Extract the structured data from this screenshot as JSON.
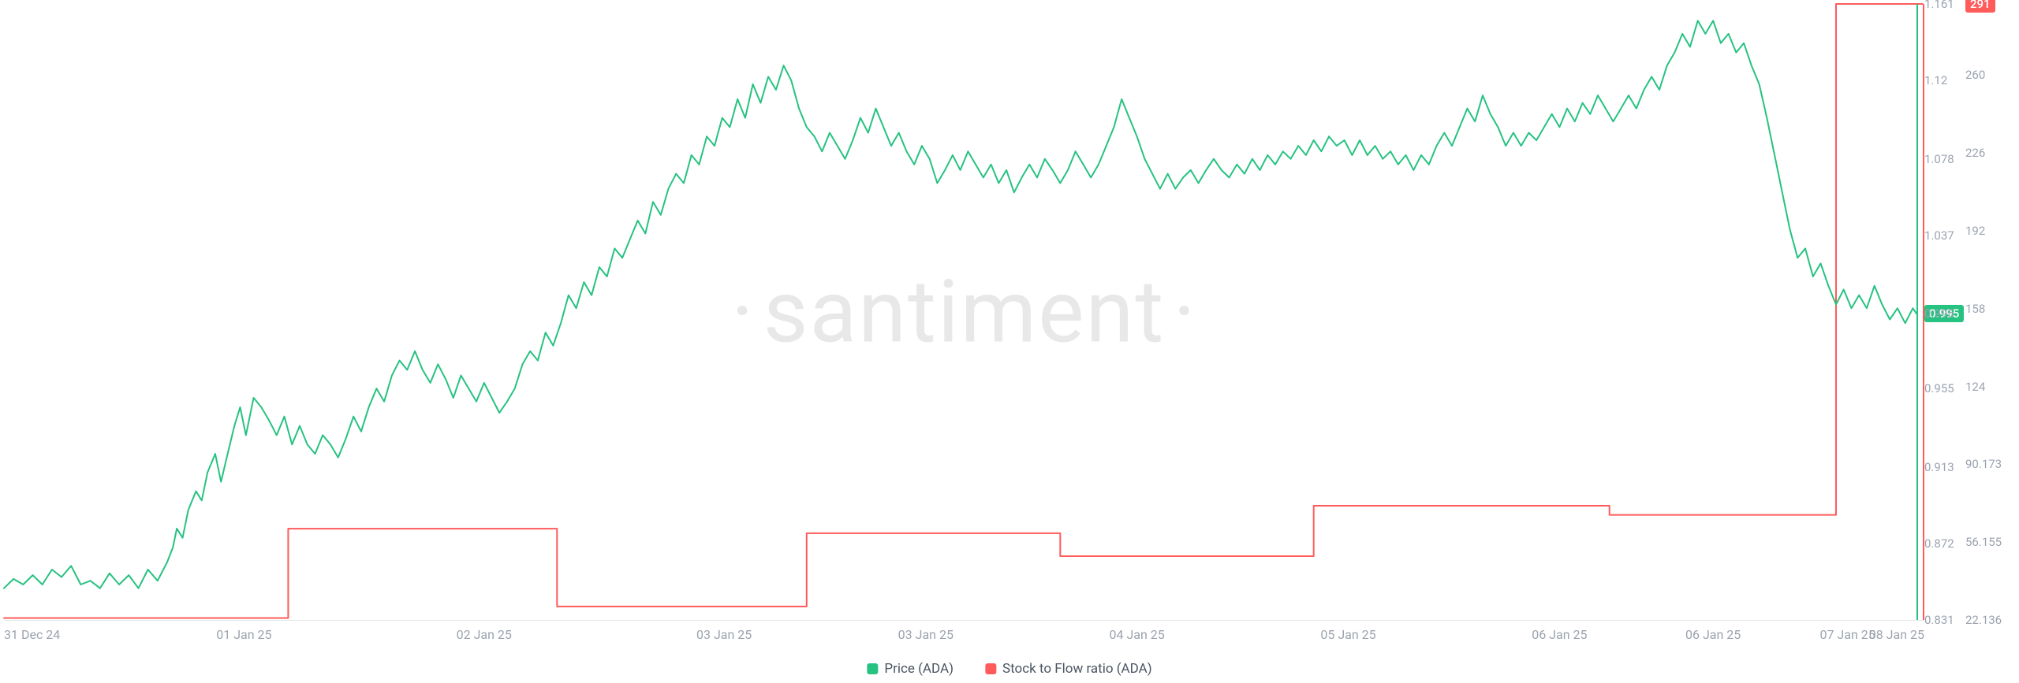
{
  "watermark": "santiment",
  "chart": {
    "type": "line",
    "background_color": "#ffffff",
    "grid_color": "#e8e8e8",
    "tick_color": "#9ca3af",
    "tick_fontsize": 16,
    "x": {
      "ticks": [
        {
          "pos": 0.0,
          "label": "31 Dec 24"
        },
        {
          "pos": 0.125,
          "label": "01 Jan 25"
        },
        {
          "pos": 0.25,
          "label": "02 Jan 25"
        },
        {
          "pos": 0.375,
          "label": "03 Jan 25"
        },
        {
          "pos": 0.48,
          "label": "03 Jan 25"
        },
        {
          "pos": 0.59,
          "label": "04 Jan 25"
        },
        {
          "pos": 0.7,
          "label": "05 Jan 25"
        },
        {
          "pos": 0.81,
          "label": "06 Jan 25"
        },
        {
          "pos": 0.89,
          "label": "06 Jan 25"
        },
        {
          "pos": 0.96,
          "label": "07 Jan 25"
        },
        {
          "pos": 1.0,
          "label": "08 Jan 25"
        }
      ]
    },
    "y_left": {
      "min": 0.831,
      "max": 1.161,
      "ticks": [
        {
          "v": 1.161,
          "label": "1.161"
        },
        {
          "v": 1.12,
          "label": "1.12"
        },
        {
          "v": 1.078,
          "label": "1.078"
        },
        {
          "v": 1.037,
          "label": "1.037"
        },
        {
          "v": 0.995,
          "label": "0.995"
        },
        {
          "v": 0.955,
          "label": "0.955"
        },
        {
          "v": 0.913,
          "label": "0.913"
        },
        {
          "v": 0.872,
          "label": "0.872"
        },
        {
          "v": 0.831,
          "label": "0.831"
        }
      ]
    },
    "y_right": {
      "min": 22.136,
      "max": 291,
      "ticks": [
        {
          "v": 260,
          "label": "260"
        },
        {
          "v": 226,
          "label": "226"
        },
        {
          "v": 192,
          "label": "192"
        },
        {
          "v": 158,
          "label": "158"
        },
        {
          "v": 124,
          "label": "124"
        },
        {
          "v": 90.173,
          "label": "90.173"
        },
        {
          "v": 56.155,
          "label": "56.155"
        },
        {
          "v": 22.136,
          "label": "22.136"
        }
      ]
    },
    "badges": {
      "left": {
        "value": "0.995",
        "y": 0.995,
        "bg": "#26c281"
      },
      "right": {
        "value": "291",
        "y": 291,
        "bg": "#ff5b5b"
      }
    },
    "end_vline_left": {
      "x": 0.996,
      "color": "#26c281"
    },
    "end_vline_right": {
      "x": 0.999,
      "color": "#ff5b5b"
    },
    "series": {
      "price": {
        "label": "Price (ADA)",
        "color": "#26c281",
        "width": 2,
        "axis": "left",
        "points": [
          [
            0.0,
            0.848
          ],
          [
            0.005,
            0.853
          ],
          [
            0.01,
            0.85
          ],
          [
            0.015,
            0.855
          ],
          [
            0.02,
            0.85
          ],
          [
            0.025,
            0.858
          ],
          [
            0.03,
            0.854
          ],
          [
            0.035,
            0.86
          ],
          [
            0.04,
            0.85
          ],
          [
            0.045,
            0.852
          ],
          [
            0.05,
            0.848
          ],
          [
            0.055,
            0.856
          ],
          [
            0.06,
            0.85
          ],
          [
            0.065,
            0.855
          ],
          [
            0.07,
            0.848
          ],
          [
            0.075,
            0.858
          ],
          [
            0.08,
            0.852
          ],
          [
            0.085,
            0.862
          ],
          [
            0.088,
            0.87
          ],
          [
            0.09,
            0.88
          ],
          [
            0.093,
            0.875
          ],
          [
            0.096,
            0.89
          ],
          [
            0.1,
            0.9
          ],
          [
            0.103,
            0.895
          ],
          [
            0.106,
            0.91
          ],
          [
            0.11,
            0.92
          ],
          [
            0.113,
            0.905
          ],
          [
            0.116,
            0.918
          ],
          [
            0.12,
            0.935
          ],
          [
            0.123,
            0.945
          ],
          [
            0.126,
            0.93
          ],
          [
            0.13,
            0.95
          ],
          [
            0.134,
            0.945
          ],
          [
            0.138,
            0.938
          ],
          [
            0.142,
            0.93
          ],
          [
            0.146,
            0.94
          ],
          [
            0.15,
            0.925
          ],
          [
            0.154,
            0.935
          ],
          [
            0.158,
            0.925
          ],
          [
            0.162,
            0.92
          ],
          [
            0.166,
            0.93
          ],
          [
            0.17,
            0.925
          ],
          [
            0.174,
            0.918
          ],
          [
            0.178,
            0.928
          ],
          [
            0.182,
            0.94
          ],
          [
            0.186,
            0.932
          ],
          [
            0.19,
            0.945
          ],
          [
            0.194,
            0.955
          ],
          [
            0.198,
            0.948
          ],
          [
            0.202,
            0.962
          ],
          [
            0.206,
            0.97
          ],
          [
            0.21,
            0.965
          ],
          [
            0.214,
            0.975
          ],
          [
            0.218,
            0.965
          ],
          [
            0.222,
            0.958
          ],
          [
            0.226,
            0.968
          ],
          [
            0.23,
            0.96
          ],
          [
            0.234,
            0.95
          ],
          [
            0.238,
            0.962
          ],
          [
            0.242,
            0.955
          ],
          [
            0.246,
            0.948
          ],
          [
            0.25,
            0.958
          ],
          [
            0.254,
            0.95
          ],
          [
            0.258,
            0.942
          ],
          [
            0.262,
            0.948
          ],
          [
            0.266,
            0.955
          ],
          [
            0.27,
            0.968
          ],
          [
            0.274,
            0.975
          ],
          [
            0.278,
            0.97
          ],
          [
            0.282,
            0.985
          ],
          [
            0.286,
            0.978
          ],
          [
            0.29,
            0.99
          ],
          [
            0.294,
            1.005
          ],
          [
            0.298,
            0.998
          ],
          [
            0.302,
            1.012
          ],
          [
            0.306,
            1.005
          ],
          [
            0.31,
            1.02
          ],
          [
            0.314,
            1.015
          ],
          [
            0.318,
            1.03
          ],
          [
            0.322,
            1.025
          ],
          [
            0.326,
            1.035
          ],
          [
            0.33,
            1.045
          ],
          [
            0.334,
            1.038
          ],
          [
            0.338,
            1.055
          ],
          [
            0.342,
            1.048
          ],
          [
            0.346,
            1.062
          ],
          [
            0.35,
            1.07
          ],
          [
            0.354,
            1.065
          ],
          [
            0.358,
            1.08
          ],
          [
            0.362,
            1.075
          ],
          [
            0.366,
            1.09
          ],
          [
            0.37,
            1.085
          ],
          [
            0.374,
            1.1
          ],
          [
            0.378,
            1.095
          ],
          [
            0.382,
            1.11
          ],
          [
            0.386,
            1.1
          ],
          [
            0.39,
            1.118
          ],
          [
            0.394,
            1.108
          ],
          [
            0.398,
            1.122
          ],
          [
            0.402,
            1.115
          ],
          [
            0.406,
            1.128
          ],
          [
            0.41,
            1.12
          ],
          [
            0.414,
            1.105
          ],
          [
            0.418,
            1.095
          ],
          [
            0.422,
            1.09
          ],
          [
            0.426,
            1.082
          ],
          [
            0.43,
            1.092
          ],
          [
            0.434,
            1.085
          ],
          [
            0.438,
            1.078
          ],
          [
            0.442,
            1.088
          ],
          [
            0.446,
            1.1
          ],
          [
            0.45,
            1.092
          ],
          [
            0.454,
            1.105
          ],
          [
            0.458,
            1.095
          ],
          [
            0.462,
            1.085
          ],
          [
            0.466,
            1.092
          ],
          [
            0.47,
            1.082
          ],
          [
            0.474,
            1.075
          ],
          [
            0.478,
            1.085
          ],
          [
            0.482,
            1.078
          ],
          [
            0.486,
            1.065
          ],
          [
            0.49,
            1.072
          ],
          [
            0.494,
            1.08
          ],
          [
            0.498,
            1.072
          ],
          [
            0.502,
            1.082
          ],
          [
            0.506,
            1.075
          ],
          [
            0.51,
            1.068
          ],
          [
            0.514,
            1.075
          ],
          [
            0.518,
            1.065
          ],
          [
            0.522,
            1.072
          ],
          [
            0.526,
            1.06
          ],
          [
            0.53,
            1.068
          ],
          [
            0.534,
            1.075
          ],
          [
            0.538,
            1.068
          ],
          [
            0.542,
            1.078
          ],
          [
            0.546,
            1.072
          ],
          [
            0.55,
            1.065
          ],
          [
            0.554,
            1.072
          ],
          [
            0.558,
            1.082
          ],
          [
            0.562,
            1.075
          ],
          [
            0.566,
            1.068
          ],
          [
            0.57,
            1.075
          ],
          [
            0.574,
            1.085
          ],
          [
            0.578,
            1.095
          ],
          [
            0.582,
            1.11
          ],
          [
            0.586,
            1.1
          ],
          [
            0.59,
            1.09
          ],
          [
            0.594,
            1.078
          ],
          [
            0.598,
            1.07
          ],
          [
            0.602,
            1.062
          ],
          [
            0.606,
            1.07
          ],
          [
            0.61,
            1.062
          ],
          [
            0.614,
            1.068
          ],
          [
            0.618,
            1.072
          ],
          [
            0.622,
            1.065
          ],
          [
            0.626,
            1.072
          ],
          [
            0.63,
            1.078
          ],
          [
            0.634,
            1.072
          ],
          [
            0.638,
            1.068
          ],
          [
            0.642,
            1.075
          ],
          [
            0.646,
            1.07
          ],
          [
            0.65,
            1.078
          ],
          [
            0.654,
            1.072
          ],
          [
            0.658,
            1.08
          ],
          [
            0.662,
            1.075
          ],
          [
            0.666,
            1.082
          ],
          [
            0.67,
            1.078
          ],
          [
            0.674,
            1.085
          ],
          [
            0.678,
            1.08
          ],
          [
            0.682,
            1.088
          ],
          [
            0.686,
            1.082
          ],
          [
            0.69,
            1.09
          ],
          [
            0.694,
            1.085
          ],
          [
            0.698,
            1.088
          ],
          [
            0.702,
            1.08
          ],
          [
            0.706,
            1.088
          ],
          [
            0.71,
            1.08
          ],
          [
            0.714,
            1.085
          ],
          [
            0.718,
            1.078
          ],
          [
            0.722,
            1.082
          ],
          [
            0.726,
            1.075
          ],
          [
            0.73,
            1.08
          ],
          [
            0.734,
            1.072
          ],
          [
            0.738,
            1.08
          ],
          [
            0.742,
            1.075
          ],
          [
            0.746,
            1.085
          ],
          [
            0.75,
            1.092
          ],
          [
            0.754,
            1.085
          ],
          [
            0.758,
            1.095
          ],
          [
            0.762,
            1.105
          ],
          [
            0.766,
            1.098
          ],
          [
            0.77,
            1.112
          ],
          [
            0.774,
            1.102
          ],
          [
            0.778,
            1.095
          ],
          [
            0.782,
            1.085
          ],
          [
            0.786,
            1.092
          ],
          [
            0.79,
            1.085
          ],
          [
            0.794,
            1.092
          ],
          [
            0.798,
            1.088
          ],
          [
            0.802,
            1.095
          ],
          [
            0.806,
            1.102
          ],
          [
            0.81,
            1.095
          ],
          [
            0.814,
            1.105
          ],
          [
            0.818,
            1.098
          ],
          [
            0.822,
            1.108
          ],
          [
            0.826,
            1.102
          ],
          [
            0.83,
            1.112
          ],
          [
            0.834,
            1.105
          ],
          [
            0.838,
            1.098
          ],
          [
            0.842,
            1.105
          ],
          [
            0.846,
            1.112
          ],
          [
            0.85,
            1.105
          ],
          [
            0.854,
            1.115
          ],
          [
            0.858,
            1.122
          ],
          [
            0.862,
            1.115
          ],
          [
            0.866,
            1.128
          ],
          [
            0.87,
            1.135
          ],
          [
            0.874,
            1.145
          ],
          [
            0.878,
            1.138
          ],
          [
            0.882,
            1.152
          ],
          [
            0.886,
            1.145
          ],
          [
            0.89,
            1.152
          ],
          [
            0.894,
            1.14
          ],
          [
            0.898,
            1.145
          ],
          [
            0.902,
            1.135
          ],
          [
            0.906,
            1.14
          ],
          [
            0.91,
            1.128
          ],
          [
            0.914,
            1.118
          ],
          [
            0.918,
            1.1
          ],
          [
            0.922,
            1.08
          ],
          [
            0.926,
            1.06
          ],
          [
            0.93,
            1.04
          ],
          [
            0.934,
            1.025
          ],
          [
            0.938,
            1.03
          ],
          [
            0.942,
            1.015
          ],
          [
            0.946,
            1.022
          ],
          [
            0.95,
            1.01
          ],
          [
            0.954,
            1.0
          ],
          [
            0.958,
            1.008
          ],
          [
            0.962,
            0.998
          ],
          [
            0.966,
            1.005
          ],
          [
            0.97,
            0.998
          ],
          [
            0.974,
            1.01
          ],
          [
            0.978,
            1.0
          ],
          [
            0.982,
            0.992
          ],
          [
            0.986,
            0.998
          ],
          [
            0.99,
            0.99
          ],
          [
            0.994,
            0.998
          ],
          [
            0.996,
            0.995
          ]
        ]
      },
      "s2f": {
        "label": "Stock to Flow ratio (ADA)",
        "color": "#ff5b5b",
        "width": 2,
        "axis": "right",
        "points": [
          [
            0.0,
            23
          ],
          [
            0.148,
            23
          ],
          [
            0.148,
            62
          ],
          [
            0.288,
            62
          ],
          [
            0.288,
            28
          ],
          [
            0.418,
            28
          ],
          [
            0.418,
            60
          ],
          [
            0.55,
            60
          ],
          [
            0.55,
            50
          ],
          [
            0.682,
            50
          ],
          [
            0.682,
            72
          ],
          [
            0.836,
            72
          ],
          [
            0.836,
            68
          ],
          [
            0.954,
            68
          ],
          [
            0.954,
            291
          ],
          [
            0.999,
            291
          ]
        ]
      }
    }
  },
  "legend": [
    {
      "swatch": "#26c281",
      "label": "Price (ADA)"
    },
    {
      "swatch": "#ff5b5b",
      "label": "Stock to Flow ratio (ADA)"
    }
  ]
}
